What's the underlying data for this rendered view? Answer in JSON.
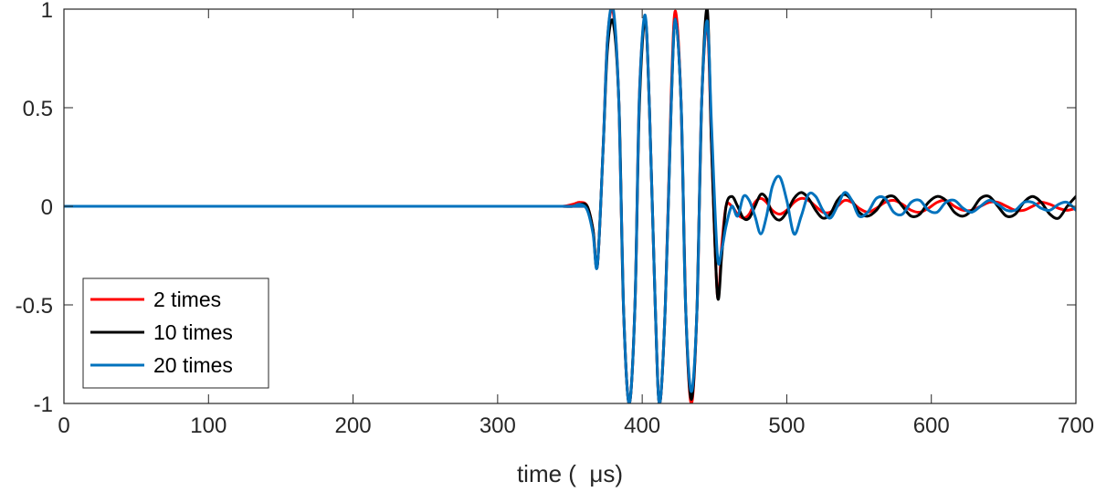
{
  "chart_data": {
    "type": "line",
    "title": "",
    "xlabel": "time (  μs)",
    "ylabel": "",
    "xlim": [
      0,
      700
    ],
    "ylim": [
      -1,
      1
    ],
    "xticks": [
      0,
      100,
      200,
      300,
      400,
      500,
      600,
      700
    ],
    "xtick_labels": [
      "0",
      "100",
      "200",
      "300",
      "400",
      "500",
      "600",
      "700"
    ],
    "yticks": [
      -1,
      -0.5,
      0,
      0.5,
      1
    ],
    "ytick_labels": [
      "-1",
      "-0.5",
      "0",
      "0.5",
      "1"
    ],
    "grid": false,
    "legend": {
      "position": "bottom-left"
    },
    "series": [
      {
        "name": "2 times",
        "color": "#ff0000",
        "x": [
          0,
          330,
          345,
          352,
          357,
          362,
          366,
          369,
          373,
          376,
          380,
          384,
          387,
          391,
          395,
          398,
          402,
          405,
          409,
          412,
          416,
          420,
          423,
          427,
          430,
          434,
          438,
          441,
          445,
          448,
          452,
          455,
          458,
          462,
          466,
          470,
          474,
          478,
          482,
          486,
          490,
          495,
          500,
          505,
          510,
          515,
          520,
          525,
          530,
          535,
          540,
          545,
          550,
          556,
          562,
          568,
          574,
          580,
          586,
          592,
          598,
          604,
          610,
          616,
          622,
          628,
          634,
          640,
          646,
          652,
          658,
          664,
          670,
          676,
          682,
          688,
          694,
          700
        ],
        "y": [
          0,
          0,
          0,
          0.01,
          0.02,
          0.0,
          -0.12,
          -0.3,
          0.3,
          0.85,
          0.98,
          0.5,
          -0.5,
          -1.0,
          -0.5,
          0.55,
          0.95,
          0.5,
          -0.5,
          -1.0,
          -0.5,
          0.55,
          0.99,
          0.5,
          -0.5,
          -1.0,
          -0.5,
          0.5,
          0.92,
          0.3,
          -0.45,
          -0.2,
          0.0,
          0.0,
          -0.04,
          -0.06,
          -0.04,
          0.02,
          0.04,
          0.02,
          -0.02,
          -0.04,
          -0.02,
          0.02,
          0.04,
          0.03,
          0.0,
          -0.03,
          -0.03,
          0.0,
          0.03,
          0.02,
          -0.01,
          -0.03,
          -0.01,
          0.02,
          0.03,
          0.01,
          -0.02,
          -0.03,
          -0.01,
          0.02,
          0.03,
          0.0,
          -0.02,
          -0.02,
          0.0,
          0.02,
          0.02,
          0.0,
          -0.02,
          -0.02,
          0.0,
          0.02,
          0.01,
          -0.01,
          -0.02,
          -0.01
        ]
      },
      {
        "name": "10 times",
        "color": "#000000",
        "x": [
          0,
          330,
          345,
          352,
          357,
          362,
          366,
          369,
          373,
          376,
          380,
          384,
          387,
          391,
          395,
          398,
          402,
          405,
          409,
          412,
          416,
          420,
          423,
          427,
          430,
          434,
          438,
          441,
          445,
          448,
          452,
          455,
          458,
          462,
          466,
          470,
          474,
          478,
          482,
          486,
          490,
          495,
          500,
          505,
          510,
          515,
          520,
          525,
          530,
          535,
          540,
          545,
          550,
          556,
          562,
          568,
          574,
          580,
          586,
          592,
          598,
          604,
          610,
          616,
          622,
          628,
          634,
          640,
          646,
          652,
          658,
          664,
          670,
          676,
          682,
          688,
          694,
          700
        ],
        "y": [
          0,
          0,
          0,
          0.0,
          0.01,
          0.0,
          -0.12,
          -0.3,
          0.3,
          0.8,
          0.93,
          0.5,
          -0.5,
          -1.0,
          -0.5,
          0.5,
          0.95,
          0.5,
          -0.5,
          -1.0,
          -0.5,
          0.5,
          0.95,
          0.5,
          -0.5,
          -0.98,
          -0.5,
          0.5,
          1.0,
          0.3,
          -0.45,
          -0.25,
          0.0,
          0.05,
          0.0,
          -0.06,
          -0.06,
          0.0,
          0.06,
          0.04,
          -0.04,
          -0.07,
          -0.03,
          0.04,
          0.07,
          0.04,
          -0.02,
          -0.06,
          -0.04,
          0.03,
          0.06,
          0.03,
          -0.03,
          -0.05,
          -0.02,
          0.04,
          0.05,
          0.0,
          -0.05,
          -0.04,
          0.02,
          0.05,
          0.03,
          -0.03,
          -0.05,
          -0.02,
          0.04,
          0.05,
          0.0,
          -0.05,
          -0.04,
          0.02,
          0.05,
          0.02,
          -0.04,
          -0.06,
          0.0,
          0.05
        ]
      },
      {
        "name": "20 times",
        "color": "#0072bd",
        "x": [
          0,
          330,
          345,
          352,
          357,
          362,
          366,
          369,
          373,
          376,
          380,
          384,
          387,
          391,
          395,
          398,
          402,
          405,
          409,
          412,
          416,
          420,
          423,
          427,
          430,
          434,
          438,
          441,
          445,
          448,
          452,
          455,
          458,
          462,
          466,
          470,
          474,
          478,
          482,
          486,
          490,
          495,
          500,
          505,
          510,
          515,
          520,
          525,
          530,
          535,
          540,
          545,
          550,
          556,
          562,
          568,
          574,
          580,
          586,
          592,
          598,
          604,
          610,
          616,
          622,
          628,
          634,
          640,
          646,
          652,
          658,
          664,
          670,
          676,
          682,
          688,
          694,
          700
        ],
        "y": [
          0,
          0,
          0,
          0.0,
          0.01,
          -0.02,
          -0.14,
          -0.3,
          0.3,
          0.85,
          1.0,
          0.5,
          -0.5,
          -1.0,
          -0.5,
          0.55,
          0.97,
          0.5,
          -0.5,
          -1.0,
          -0.5,
          0.5,
          0.95,
          0.5,
          -0.5,
          -0.94,
          -0.5,
          0.5,
          0.94,
          0.4,
          -0.25,
          -0.22,
          -0.1,
          0.0,
          -0.05,
          0.05,
          0.03,
          -0.05,
          -0.14,
          -0.05,
          0.1,
          0.15,
          0.03,
          -0.14,
          -0.05,
          0.06,
          0.05,
          -0.02,
          -0.06,
          0.0,
          0.07,
          0.03,
          -0.05,
          -0.03,
          0.04,
          0.04,
          -0.03,
          -0.04,
          0.02,
          0.03,
          -0.02,
          -0.03,
          0.02,
          0.03,
          -0.01,
          -0.03,
          0.0,
          0.03,
          0.01,
          -0.02,
          -0.02,
          0.02,
          0.02,
          -0.01,
          -0.02,
          0.01,
          0.02,
          -0.02
        ]
      }
    ]
  }
}
